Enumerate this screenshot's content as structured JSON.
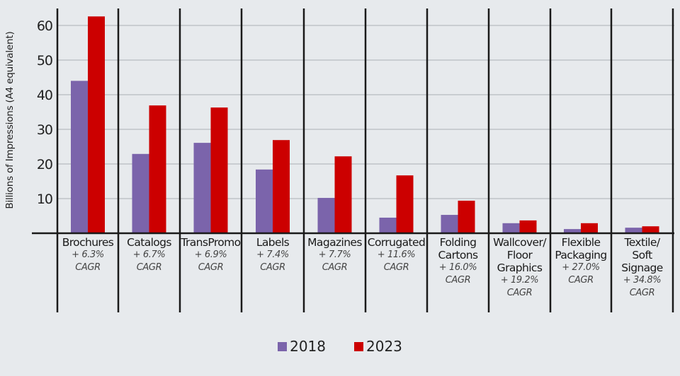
{
  "chart_data": {
    "type": "bar",
    "ylabel": "Billions of Impressions (A4 equivalent)",
    "xlabel": "",
    "ylim": [
      0,
      65
    ],
    "yticks": [
      10,
      20,
      30,
      40,
      50,
      60
    ],
    "grid": true,
    "legend_position": "bottom-center",
    "categories": [
      {
        "name": [
          "Brochures"
        ],
        "cagr": "+ 6.3%",
        "cagr_label": "CAGR"
      },
      {
        "name": [
          "Catalogs"
        ],
        "cagr": "+ 6.7%",
        "cagr_label": "CAGR"
      },
      {
        "name": [
          "TransPromo"
        ],
        "cagr": "+ 6.9%",
        "cagr_label": "CAGR"
      },
      {
        "name": [
          "Labels"
        ],
        "cagr": "+ 7.4%",
        "cagr_label": "CAGR"
      },
      {
        "name": [
          "Magazines"
        ],
        "cagr": "+ 7.7%",
        "cagr_label": "CAGR"
      },
      {
        "name": [
          "Corrugated"
        ],
        "cagr": "+ 11.6%",
        "cagr_label": "CAGR"
      },
      {
        "name": [
          "Folding",
          "Cartons"
        ],
        "cagr": "+ 16.0%",
        "cagr_label": "CAGR"
      },
      {
        "name": [
          "Wallcover/",
          "Floor",
          "Graphics"
        ],
        "cagr": "+ 19.2%",
        "cagr_label": "CAGR"
      },
      {
        "name": [
          "Flexible",
          "Packaging"
        ],
        "cagr": "+ 27.0%",
        "cagr_label": "CAGR"
      },
      {
        "name": [
          "Textile/",
          "Soft",
          "Signage"
        ],
        "cagr": "+ 34.8%",
        "cagr_label": "CAGR"
      }
    ],
    "series": [
      {
        "name": "2018",
        "color": "#7b64ab",
        "values": [
          44.0,
          22.9,
          26.1,
          18.4,
          10.2,
          4.5,
          5.3,
          2.9,
          1.2,
          1.6
        ]
      },
      {
        "name": "2023",
        "color": "#cc0000",
        "values": [
          62.6,
          36.9,
          36.3,
          26.9,
          22.2,
          16.7,
          9.4,
          3.7,
          2.9,
          2.0
        ]
      }
    ]
  }
}
